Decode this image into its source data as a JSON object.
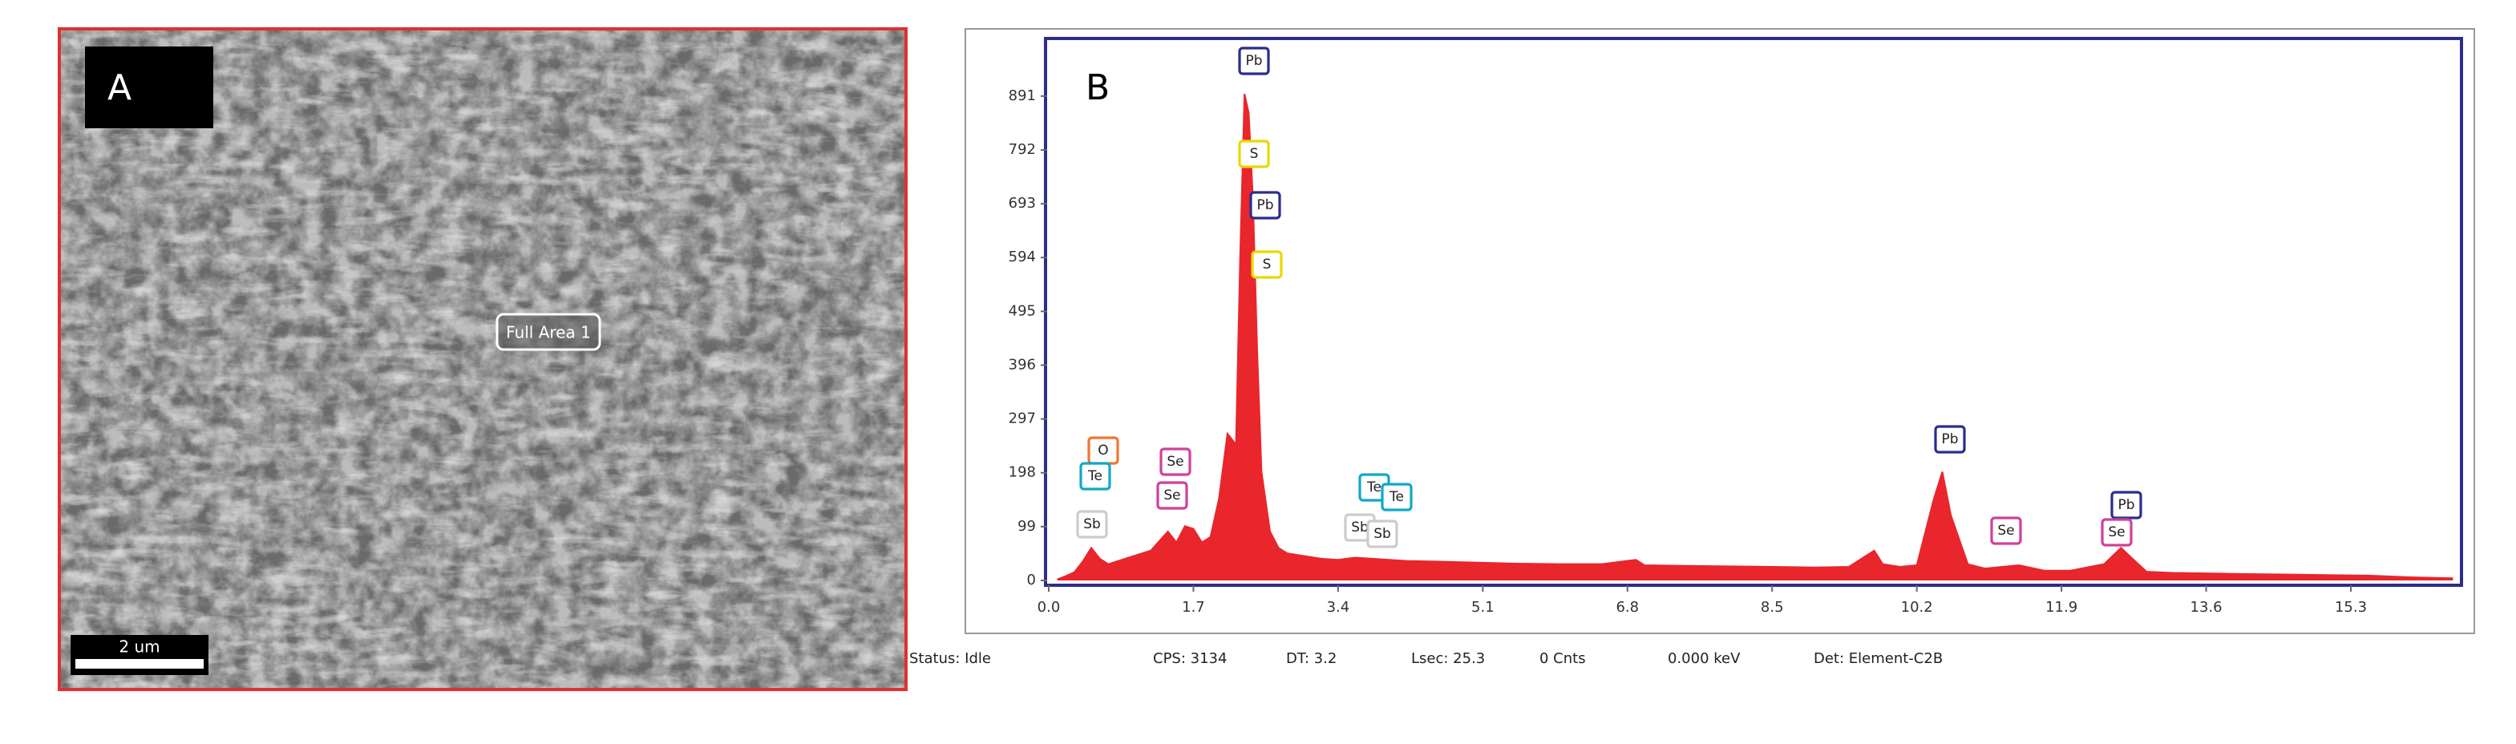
{
  "panel_a": {
    "label": "A",
    "region_label": "Full Area 1",
    "scale_bar": "2 um"
  },
  "chart_data": {
    "type": "area",
    "panel_label": "B",
    "x": [
      0.1,
      0.2,
      0.3,
      0.4,
      0.5,
      0.6,
      0.7,
      0.8,
      1.0,
      1.2,
      1.4,
      1.5,
      1.6,
      1.7,
      1.8,
      1.9,
      2.0,
      2.1,
      2.2,
      2.25,
      2.3,
      2.35,
      2.4,
      2.45,
      2.5,
      2.6,
      2.7,
      2.8,
      3.0,
      3.2,
      3.4,
      3.6,
      3.8,
      4.0,
      4.2,
      4.5,
      5.0,
      5.5,
      6.0,
      6.5,
      6.9,
      7.0,
      7.5,
      8.0,
      8.5,
      9.0,
      9.4,
      9.6,
      9.7,
      9.8,
      10.0,
      10.2,
      10.4,
      10.5,
      10.6,
      10.8,
      11.0,
      11.4,
      11.7,
      12.0,
      12.4,
      12.6,
      12.7,
      12.9,
      13.2,
      13.6,
      14.0,
      14.5,
      15.0,
      15.5,
      16.0,
      16.5
    ],
    "values": [
      2,
      8,
      15,
      35,
      60,
      40,
      30,
      35,
      45,
      55,
      90,
      70,
      100,
      95,
      70,
      80,
      150,
      270,
      250,
      600,
      895,
      860,
      700,
      420,
      200,
      90,
      60,
      50,
      45,
      40,
      38,
      42,
      40,
      38,
      36,
      35,
      33,
      31,
      30,
      30,
      38,
      28,
      27,
      26,
      25,
      24,
      25,
      45,
      55,
      30,
      25,
      28,
      150,
      200,
      120,
      30,
      22,
      28,
      18,
      18,
      30,
      60,
      45,
      16,
      14,
      13,
      12,
      11,
      10,
      9,
      6,
      4
    ],
    "color": "#e8262c",
    "xlim": [
      0,
      16.6
    ],
    "ylim": [
      0,
      994
    ],
    "xticks": [
      {
        "value": 0,
        "label": "0.0"
      },
      1.7,
      3.4,
      5.1,
      6.8,
      8.5,
      10.2,
      11.9,
      13.6,
      15.3
    ],
    "yticks": [
      0,
      99,
      198,
      297,
      396,
      495,
      594,
      693,
      792,
      891
    ],
    "grid": false,
    "annotations": [
      {
        "text": "Pb",
        "color": "#2b2e8c"
      },
      {
        "text": "S",
        "color": "#e8d800"
      },
      {
        "text": "Pb",
        "color": "#2b2e8c"
      },
      {
        "text": "S",
        "color": "#e8d800"
      },
      {
        "text": "O",
        "color": "#ee7733"
      },
      {
        "text": "Te",
        "color": "#10a8c8"
      },
      {
        "text": "Sb",
        "color": "#cccccc"
      },
      {
        "text": "Se",
        "color": "#d0409a"
      },
      {
        "text": "Se",
        "color": "#d0409a"
      },
      {
        "text": "Te",
        "color": "#10a8c8"
      },
      {
        "text": "Te",
        "color": "#10a8c8"
      },
      {
        "text": "Sb",
        "color": "#cccccc"
      },
      {
        "text": "Sb",
        "color": "#cccccc"
      },
      {
        "text": "Pb",
        "color": "#2b2e8c"
      },
      {
        "text": "Se",
        "color": "#d0409a"
      },
      {
        "text": "Pb",
        "color": "#2b2e8c"
      },
      {
        "text": "Se",
        "color": "#d0409a"
      }
    ]
  },
  "status_bar": [
    "Status: Idle",
    "CPS: 3134",
    "DT: 3.2",
    "Lsec: 25.3",
    "0 Cnts",
    "0.000 keV",
    "Det: Element-C2B"
  ]
}
